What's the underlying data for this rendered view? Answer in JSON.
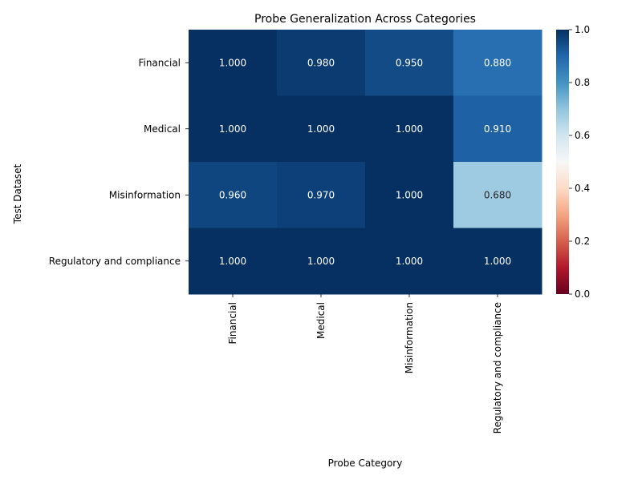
{
  "chart_data": {
    "type": "heatmap",
    "title": "Probe Generalization Across Categories",
    "xlabel": "Probe Category",
    "ylabel": "Test Dataset",
    "x_categories": [
      "Financial",
      "Medical",
      "Misinformation",
      "Regulatory and compliance"
    ],
    "y_categories": [
      "Financial",
      "Medical",
      "Misinformation",
      "Regulatory and compliance"
    ],
    "values": [
      [
        1.0,
        0.98,
        0.95,
        0.88
      ],
      [
        1.0,
        1.0,
        1.0,
        0.91
      ],
      [
        0.96,
        0.97,
        1.0,
        0.68
      ],
      [
        1.0,
        1.0,
        1.0,
        1.0
      ]
    ],
    "cell_labels": [
      [
        "1.000",
        "0.980",
        "0.950",
        "0.880"
      ],
      [
        "1.000",
        "1.000",
        "1.000",
        "0.910"
      ],
      [
        "0.960",
        "0.970",
        "1.000",
        "0.680"
      ],
      [
        "1.000",
        "1.000",
        "1.000",
        "1.000"
      ]
    ],
    "colormap": "RdBu",
    "vmin": 0.0,
    "vmax": 1.0,
    "colorbar_ticks": [
      "0.0",
      "0.2",
      "0.4",
      "0.6",
      "0.8",
      "1.0"
    ],
    "grid": false
  }
}
